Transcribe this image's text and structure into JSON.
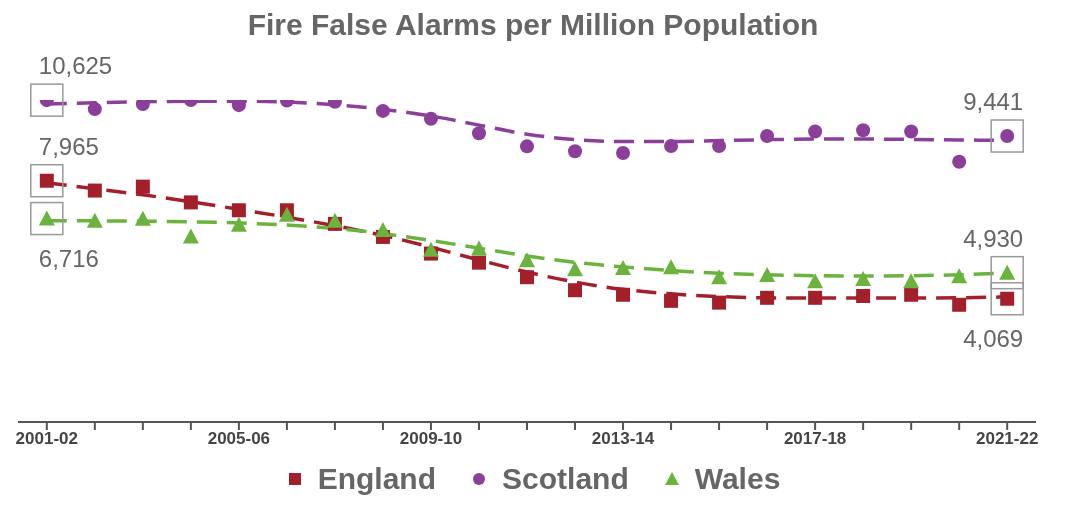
{
  "chart_data": {
    "type": "line",
    "title": "Fire False Alarms per Million Population",
    "categories": [
      "2001-02",
      null,
      null,
      null,
      "2005-06",
      null,
      null,
      null,
      "2009-10",
      null,
      null,
      null,
      "2013-14",
      null,
      null,
      null,
      "2017-18",
      null,
      null,
      null,
      "2021-22"
    ],
    "tick_labels": "x",
    "legend": "bottom",
    "series": [
      {
        "name": "England",
        "type": "scatter",
        "marker": "square",
        "color": "#a3202b",
        "values": [
          7965,
          7640,
          7770,
          7250,
          6990,
          6990,
          6540,
          6110,
          5560,
          5260,
          4780,
          4350,
          4200,
          4000,
          3940,
          4100,
          4100,
          4160,
          4200,
          3870,
          4069
        ],
        "value_labels": [
          "7,965",
          null,
          null,
          null,
          null,
          null,
          null,
          null,
          null,
          null,
          null,
          null,
          null,
          null,
          null,
          null,
          null,
          null,
          null,
          null,
          "4,069"
        ]
      },
      {
        "name": "Scotland",
        "type": "scatter",
        "marker": "circle",
        "color": "#8c3f9a",
        "values": [
          10625,
          10330,
          10500,
          10630,
          10460,
          10610,
          10570,
          10270,
          10010,
          9530,
          9100,
          8940,
          8880,
          9110,
          9110,
          9440,
          9590,
          9630,
          9590,
          8590,
          9441
        ],
        "value_labels": [
          "10,625",
          null,
          null,
          null,
          null,
          null,
          null,
          null,
          null,
          null,
          null,
          null,
          null,
          null,
          null,
          null,
          null,
          null,
          null,
          null,
          "9,441"
        ]
      },
      {
        "name": "Wales",
        "type": "scatter",
        "marker": "triangle",
        "color": "#6ab43e",
        "values": [
          6716,
          6640,
          6710,
          6120,
          6510,
          6840,
          6640,
          6340,
          5690,
          5730,
          5340,
          5040,
          5080,
          5110,
          4780,
          4850,
          4650,
          4720,
          4650,
          4810,
          4930
        ],
        "value_labels": [
          "6,716",
          null,
          null,
          null,
          null,
          null,
          null,
          null,
          null,
          null,
          null,
          null,
          null,
          null,
          null,
          null,
          null,
          null,
          null,
          null,
          "4,930"
        ]
      },
      {
        "line_style": "dashed",
        "marker": "none",
        "color": "#a3202b",
        "values": [
          7900,
          7700,
          7500,
          7270,
          7020,
          6760,
          6480,
          6160,
          5770,
          5350,
          4950,
          4620,
          4380,
          4230,
          4140,
          4100,
          4090,
          4090,
          4090,
          4100,
          4130
        ]
      },
      {
        "line_style": "dashed",
        "marker": "none",
        "color": "#8c3f9a",
        "values": [
          10500,
          10540,
          10570,
          10590,
          10590,
          10560,
          10470,
          10320,
          10100,
          9800,
          9500,
          9320,
          9260,
          9260,
          9290,
          9320,
          9340,
          9340,
          9330,
          9310,
          9300
        ]
      },
      {
        "line_style": "dashed",
        "marker": "none",
        "color": "#6ab43e",
        "values": [
          6640,
          6640,
          6630,
          6610,
          6570,
          6500,
          6390,
          6220,
          5990,
          5740,
          5480,
          5270,
          5120,
          5000,
          4910,
          4860,
          4830,
          4820,
          4830,
          4860,
          4920
        ]
      }
    ]
  }
}
